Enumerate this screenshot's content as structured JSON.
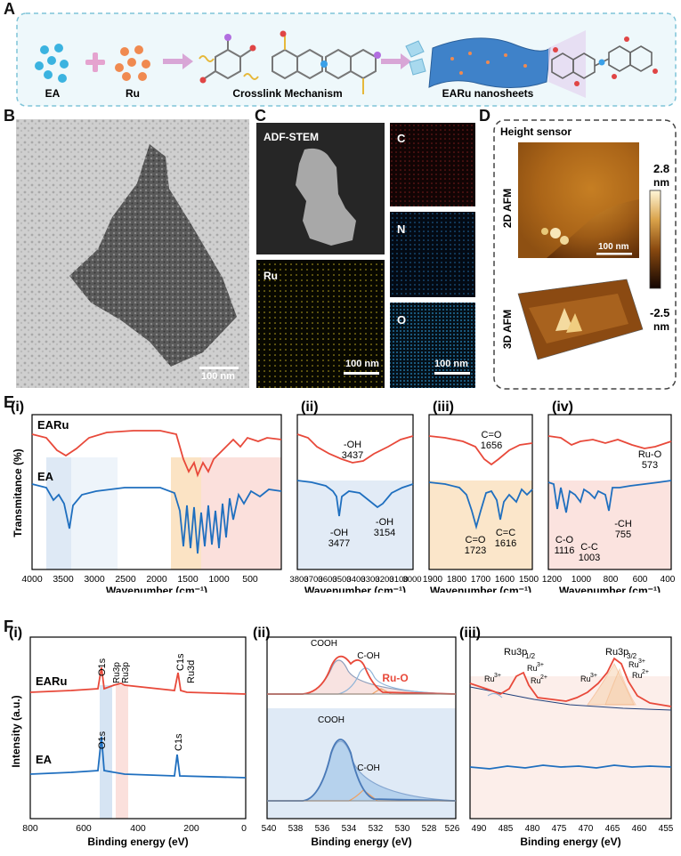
{
  "panel_labels": {
    "A": "A",
    "B": "B",
    "C": "C",
    "D": "D",
    "E": "E",
    "F": "F"
  },
  "panelA": {
    "ea_label": "EA",
    "ru_label": "Ru",
    "crosslink_label": "Crosslink Mechanism",
    "nanosheet_label": "EARu nanosheets",
    "colors": {
      "ea": "#3bb3e0",
      "ru": "#f08a50",
      "border": "#7fc4d8",
      "bg": "#eef8fb"
    }
  },
  "panelB": {
    "scale": "100 nm"
  },
  "panelC": {
    "adf_title": "ADF-STEM",
    "c_label": "C",
    "n_label": "N",
    "o_label": "O",
    "ru_label": "Ru",
    "scale1": "100 nm",
    "scale2": "100 nm"
  },
  "panelD": {
    "title": "Height sensor",
    "label_2d": "2D AFM",
    "label_3d": "3D AFM",
    "scale": "100 nm",
    "cbar_max": "2.8",
    "cbar_max_unit": "nm",
    "cbar_min": "-2.5",
    "cbar_min_unit": "nm"
  },
  "panelE": {
    "sub_i": "(i)",
    "sub_ii": "(ii)",
    "sub_iii": "(iii)",
    "sub_iv": "(iv)",
    "ylabel": "Transmitance (%)",
    "xlabel_i": "Wavenumber (cm⁻¹)",
    "xlabel_ii": "Wavenumber (cm⁻¹)",
    "xlabel_iii": "Wavenumber (cm⁻¹)",
    "xlabel_iv": "Wavenumber (cm⁻¹)",
    "series_earu": "EARu",
    "series_ea": "EA",
    "ticks_i": [
      "4000",
      "3500",
      "3000",
      "2500",
      "2000",
      "1500",
      "1000",
      "500"
    ],
    "ticks_ii": [
      "3800",
      "3700",
      "3600",
      "3500",
      "3400",
      "3300",
      "3200",
      "3100",
      "3000"
    ],
    "ticks_iii": [
      "1900",
      "1800",
      "1700",
      "1600",
      "1500"
    ],
    "ticks_iv": [
      "1200",
      "1000",
      "800",
      "600",
      "400"
    ],
    "ann_ii_oh1_name": "-OH",
    "ann_ii_oh1_val": "3437",
    "ann_ii_oh2_name": "-OH",
    "ann_ii_oh2_val": "3477",
    "ann_ii_oh3_name": "-OH",
    "ann_ii_oh3_val": "3154",
    "ann_iii_co1_name": "C=O",
    "ann_iii_co1_val": "1656",
    "ann_iii_co2_name": "C=O",
    "ann_iii_co2_val": "1723",
    "ann_iii_cc_name": "C=C",
    "ann_iii_cc_val": "1616",
    "ann_iv_ruo_name": "Ru-O",
    "ann_iv_ruo_val": "573",
    "ann_iv_co_name": "C-O",
    "ann_iv_co_val": "1116",
    "ann_iv_cc_name": "C-C",
    "ann_iv_cc_val": "1003",
    "ann_iv_ch_name": "-CH",
    "ann_iv_ch_val": "755",
    "colors": {
      "earu": "#e8493a",
      "ea": "#1f6fbf",
      "band_blue": "#d6e4f3",
      "band_orange": "#fbe3c4",
      "band_pink": "#fbe0dc"
    }
  },
  "panelF": {
    "sub_i": "(i)",
    "sub_ii": "(ii)",
    "sub_iii": "(iii)",
    "ylabel": "Intensity (a.u.)",
    "xlabel_i": "Binding energy (eV)",
    "xlabel_ii": "Binding energy (eV)",
    "xlabel_iii": "Binding energy (eV)",
    "series_earu": "EARu",
    "series_ea": "EA",
    "ticks_i": [
      "800",
      "600",
      "400",
      "200",
      "0"
    ],
    "ticks_ii": [
      "540",
      "538",
      "536",
      "534",
      "532",
      "530",
      "528",
      "526"
    ],
    "ticks_iii": [
      "490",
      "485",
      "480",
      "475",
      "470",
      "465",
      "460",
      "455"
    ],
    "ann_o1s": "O1s",
    "ann_ru3p_a": "Ru3p",
    "ann_ru3p_b": "Ru3p",
    "ann_c1s": "C1s",
    "ann_ru3d": "Ru3d",
    "ann_o1s_ea": "O1s",
    "ann_c1s_ea": "C1s",
    "ann_cooh": "COOH",
    "ann_coh": "C-OH",
    "ann_ruo": "Ru-O",
    "ann_cooh_ea": "COOH",
    "ann_coh_ea": "C-OH",
    "ann_ru3p12": "Ru3p",
    "ann_ru3p12_sub": "1/2",
    "ann_ru3p32": "Ru3p",
    "ann_ru3p32_sub": "3/2",
    "ann_ru3_a": "Ru",
    "ann_ru3_a_sup": "3+",
    "ann_ru3_b": "Ru",
    "ann_ru3_b_sup": "3+",
    "ann_ru2_a": "Ru",
    "ann_ru2_a_sup": "2+",
    "ann_ru3_c": "Ru",
    "ann_ru3_c_sup": "3+",
    "ann_ru3_d": "Ru",
    "ann_ru3_d_sup": "3+",
    "ann_ru2_b": "Ru",
    "ann_ru2_b_sup": "2+"
  }
}
